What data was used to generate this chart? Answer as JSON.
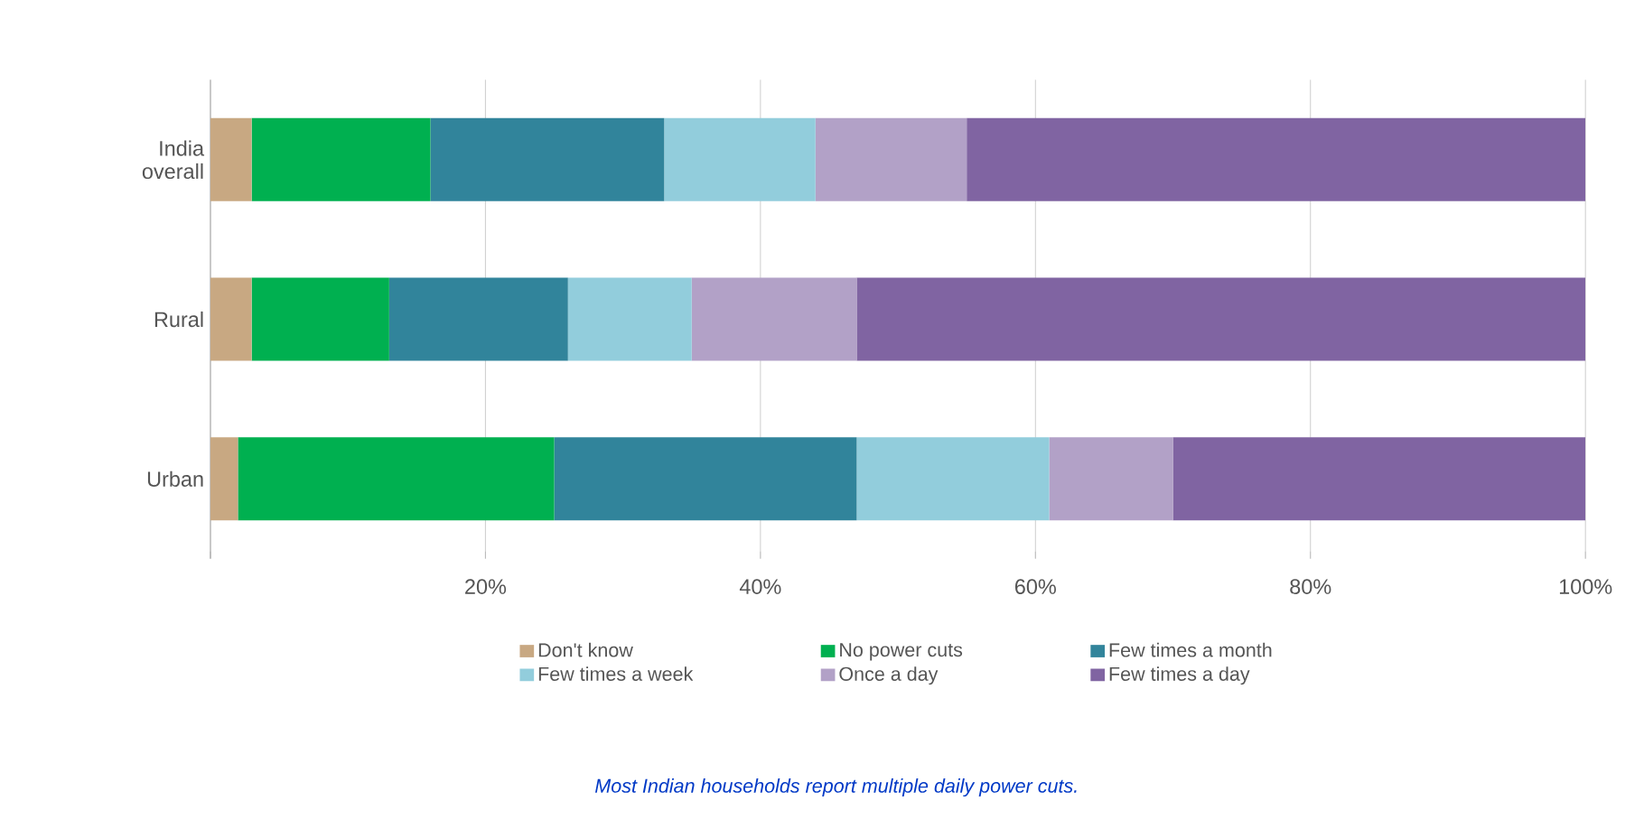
{
  "chart_data": {
    "type": "bar",
    "orientation": "horizontal",
    "stacked": true,
    "categories": [
      "India overall",
      "Rural",
      "Urban"
    ],
    "series": [
      {
        "name": "Don't know",
        "color": "#c8a882",
        "values": [
          3,
          3,
          2
        ]
      },
      {
        "name": "No power cuts",
        "color": "#00b050",
        "values": [
          13,
          10,
          23
        ]
      },
      {
        "name": "Few times a month",
        "color": "#31849b",
        "values": [
          17,
          13,
          22
        ]
      },
      {
        "name": "Few times a week",
        "color": "#92cddc",
        "values": [
          11,
          9,
          14
        ]
      },
      {
        "name": "Once a day",
        "color": "#b2a1c7",
        "values": [
          11,
          12,
          9
        ]
      },
      {
        "name": "Few times a day",
        "color": "#8064a2",
        "values": [
          45,
          53,
          30
        ]
      }
    ],
    "xlim": [
      0,
      100
    ],
    "xticks": [
      {
        "value": 0,
        "label": null
      },
      {
        "value": 20,
        "label": "20%"
      },
      {
        "value": 40,
        "label": "40%"
      },
      {
        "value": 60,
        "label": "60%"
      },
      {
        "value": 80,
        "label": "80%"
      },
      {
        "value": 100,
        "label": "100%"
      }
    ],
    "grid": "x",
    "legend": "bottom",
    "annotations": [
      "Most Indian households report multiple daily power cuts."
    ]
  }
}
